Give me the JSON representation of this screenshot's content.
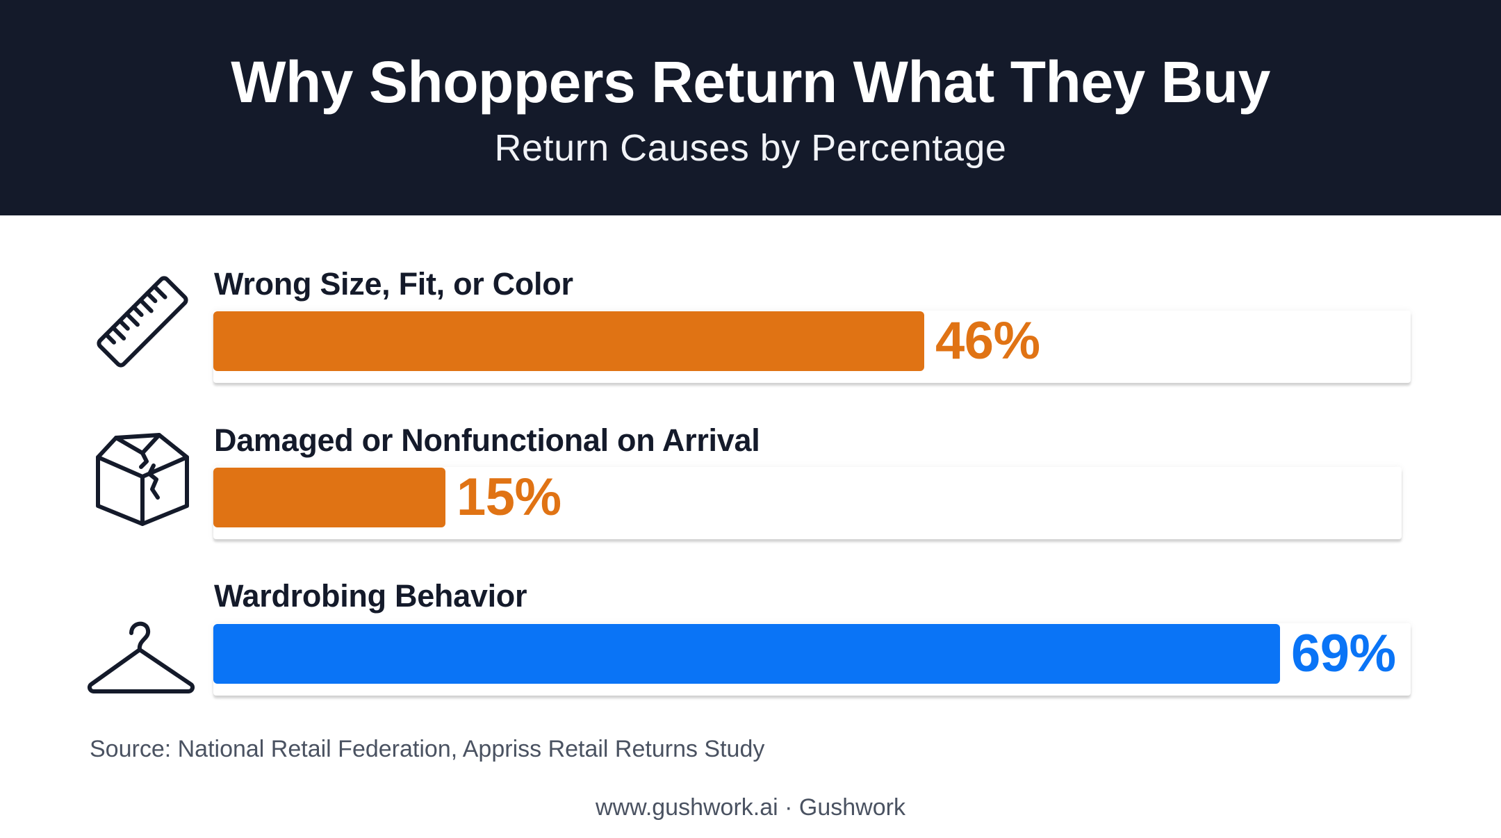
{
  "header": {
    "title": "Why Shoppers Return What They Buy",
    "subtitle": "Return Causes by Percentage"
  },
  "rows": [
    {
      "label": "Wrong Size, Fit, or Color",
      "value_text": "46%",
      "icon": "ruler-icon"
    },
    {
      "label": "Damaged or Nonfunctional on Arrival",
      "value_text": "15%",
      "icon": "damaged-box-icon"
    },
    {
      "label": "Wardrobing Behavior",
      "value_text": "69%",
      "icon": "hanger-icon"
    }
  ],
  "colors": {
    "header_bg": "#141a2a",
    "orange": "#e07314",
    "blue": "#0a74f6",
    "text_dark": "#141a2a",
    "text_muted": "#4a5261"
  },
  "chart_data": {
    "type": "bar",
    "orientation": "horizontal",
    "title": "Why Shoppers Return What They Buy",
    "subtitle": "Return Causes by Percentage",
    "categories": [
      "Wrong Size, Fit, or Color",
      "Damaged or Nonfunctional on Arrival",
      "Wardrobing Behavior"
    ],
    "values": [
      46,
      15,
      69
    ],
    "bar_colors": [
      "#e07314",
      "#e07314",
      "#0a74f6"
    ],
    "unit": "%",
    "xlim": [
      0,
      100
    ],
    "grid": false,
    "legend": "none"
  },
  "source": "Source: National Retail Federation, Appriss Retail Returns Study",
  "footer": "www.gushwork.ai · Gushwork"
}
